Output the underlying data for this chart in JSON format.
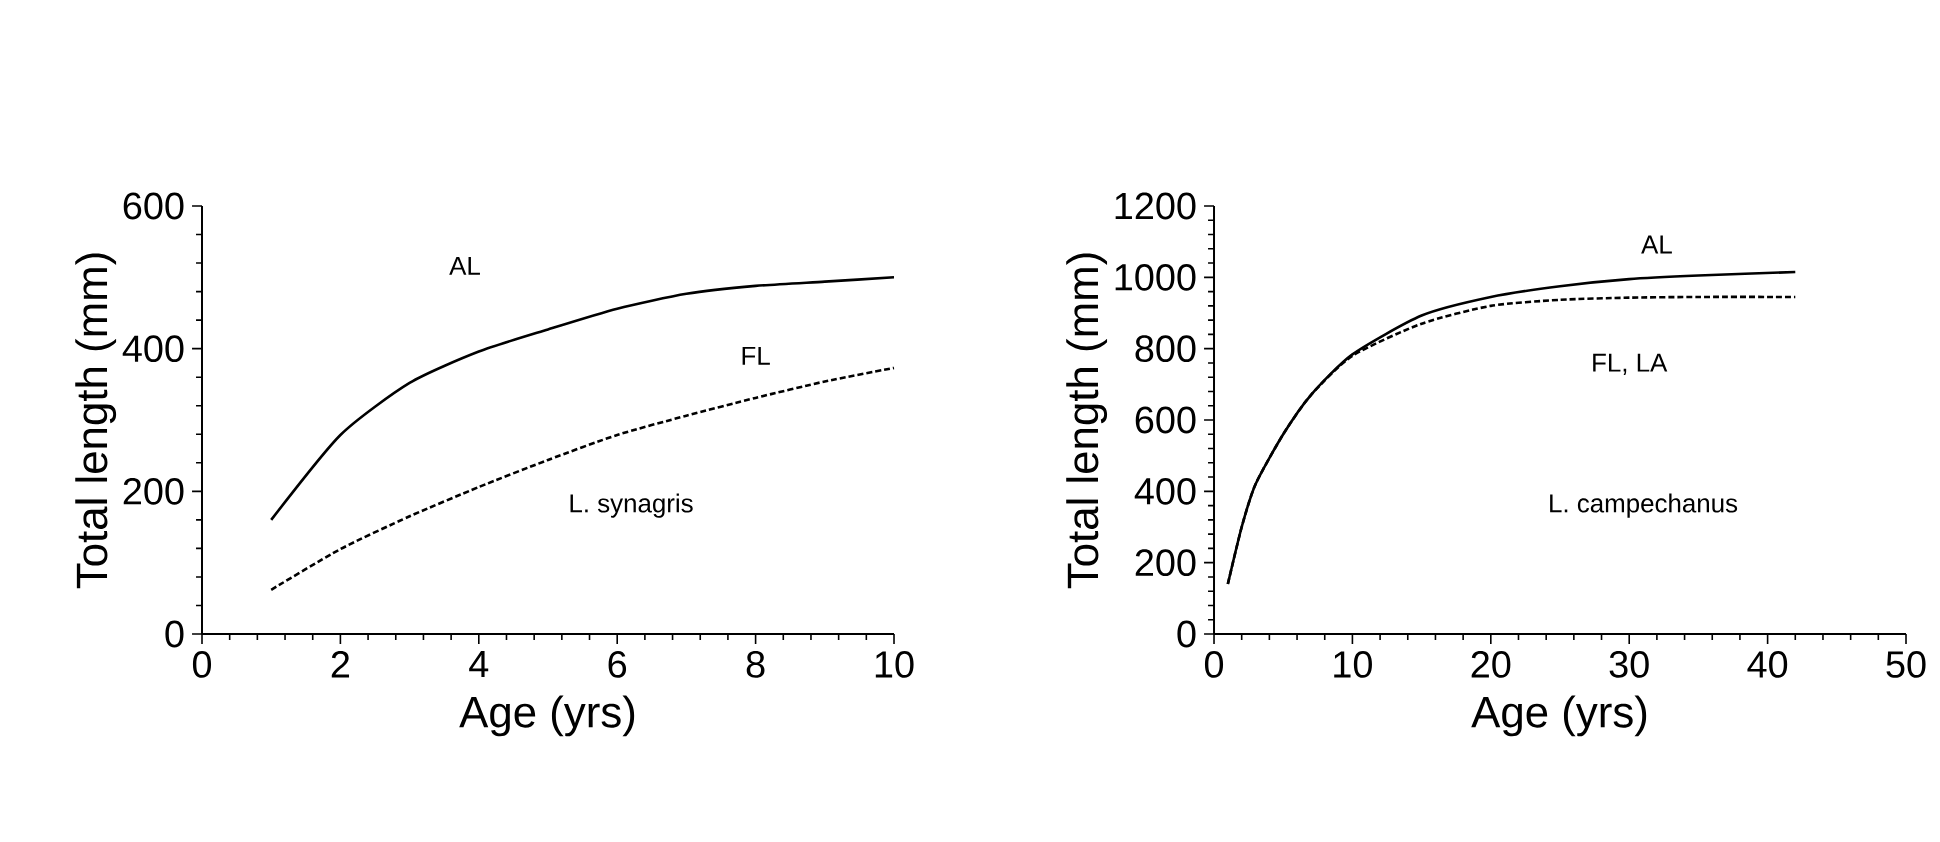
{
  "chart_data": [
    {
      "type": "line",
      "xlabel": "Age (yrs)",
      "ylabel": "Total length (mm)",
      "xlim": [
        0,
        10
      ],
      "ylim": [
        0,
        600
      ],
      "xticks": [
        0,
        2,
        4,
        6,
        8,
        10
      ],
      "yticks": [
        0,
        200,
        400,
        600
      ],
      "annotations": [
        "L. synagris"
      ],
      "x": [
        1,
        2,
        3,
        4,
        5,
        6,
        7,
        8,
        9,
        10
      ],
      "series": [
        {
          "name": "AL",
          "color": "#000000",
          "line_style": "solid",
          "values": [
            160,
            279,
            352,
            396,
            427,
            456,
            477,
            488,
            494,
            500
          ]
        },
        {
          "name": "FL",
          "color": "#000000",
          "line_style": "dashed",
          "values": [
            62,
            119,
            165,
            206,
            244,
            279,
            306,
            331,
            354,
            373
          ]
        }
      ]
    },
    {
      "type": "line",
      "xlabel": "Age (yrs)",
      "ylabel": "Total length (mm)",
      "xlim": [
        0,
        50
      ],
      "ylim": [
        0,
        1200
      ],
      "xticks": [
        0,
        10,
        20,
        30,
        40,
        50
      ],
      "yticks": [
        0,
        200,
        400,
        600,
        800,
        1000,
        1200
      ],
      "annotations": [
        "L. campechanus"
      ],
      "x": [
        1,
        2,
        3,
        5,
        7,
        10,
        15,
        20,
        25,
        30,
        35,
        42
      ],
      "series": [
        {
          "name": "AL",
          "color": "#000000",
          "line_style": "solid",
          "values": [
            140,
            300,
            420,
            560,
            670,
            784,
            893,
            945,
            975,
            995,
            1005,
            1015
          ]
        },
        {
          "name": "FL, LA",
          "color": "#000000",
          "line_style": "dashed",
          "values": [
            140,
            300,
            420,
            560,
            670,
            780,
            870,
            920,
            937,
            943,
            945,
            945
          ]
        }
      ]
    }
  ]
}
